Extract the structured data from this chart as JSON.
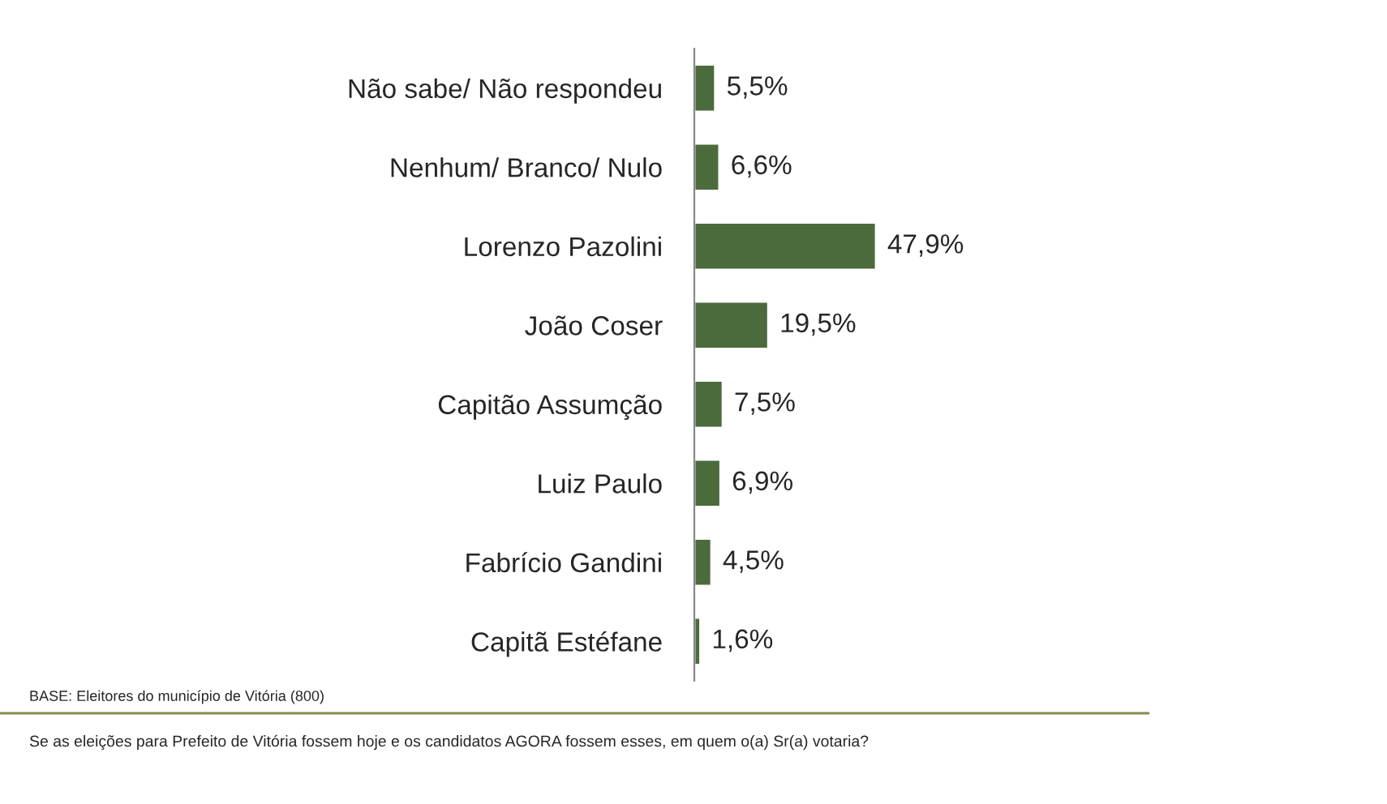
{
  "chart_data": {
    "type": "bar",
    "orientation": "horizontal",
    "categories": [
      "Não sabe/ Não respondeu",
      "Nenhum/ Branco/ Nulo",
      "Lorenzo Pazolini",
      "João Coser",
      "Capitão Assumção",
      "Luiz Paulo",
      "Fabrício Gandini",
      "Capitã Estéfane"
    ],
    "values": [
      5.5,
      6.6,
      47.9,
      19.5,
      7.5,
      6.9,
      4.5,
      1.6
    ],
    "value_labels": [
      "5,5%",
      "6,6%",
      "47,9%",
      "19,5%",
      "7,5%",
      "6,9%",
      "4,5%",
      "1,6%"
    ],
    "color": "#4b6b3c",
    "annotations": [
      "BASE: Eleitores do município de Vitória (800)",
      "Se as eleições para Prefeito de Vitória fossem hoje e os candidatos AGORA fossem esses, em quem o(a) Sr(a) votaria?"
    ]
  }
}
